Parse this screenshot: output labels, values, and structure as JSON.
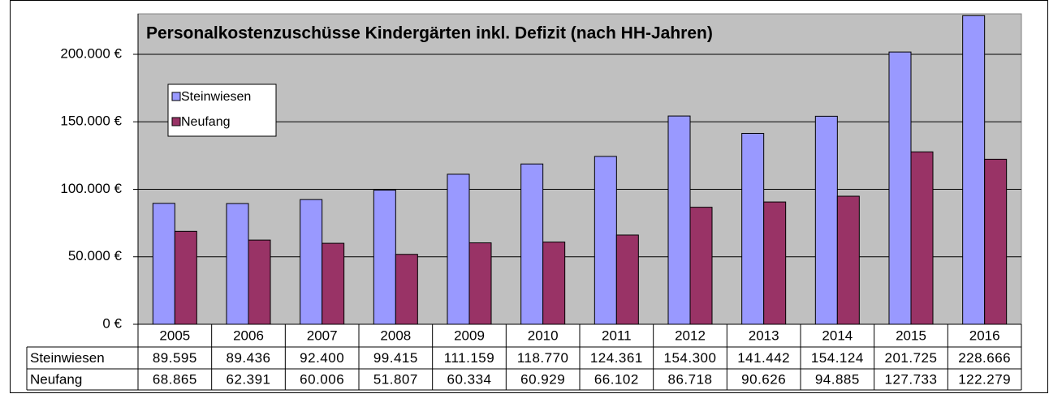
{
  "chart_data": {
    "type": "bar",
    "title": "Personalkostenzuschüsse Kindergärten inkl. Defizit (nach HH-Jahren)",
    "categories": [
      "2005",
      "2006",
      "2007",
      "2008",
      "2009",
      "2010",
      "2011",
      "2012",
      "2013",
      "2014",
      "2015",
      "2016"
    ],
    "series": [
      {
        "name": "Steinwiesen",
        "color": "#9999ff",
        "values": [
          89595,
          89436,
          92400,
          99415,
          111159,
          118770,
          124361,
          154300,
          141442,
          154124,
          201725,
          228666
        ],
        "value_labels": [
          "89.595",
          "89.436",
          "92.400",
          "99.415",
          "111.159",
          "118.770",
          "124.361",
          "154.300",
          "141.442",
          "154.124",
          "201.725",
          "228.666"
        ]
      },
      {
        "name": "Neufang",
        "color": "#993366",
        "values": [
          68865,
          62391,
          60006,
          51807,
          60334,
          60929,
          66102,
          86718,
          90626,
          94885,
          127733,
          122279
        ],
        "value_labels": [
          "68.865",
          "62.391",
          "60.006",
          "51.807",
          "60.334",
          "60.929",
          "66.102",
          "86.718",
          "90.626",
          "94.885",
          "127.733",
          "122.279"
        ]
      }
    ],
    "ylim": [
      0,
      230000
    ],
    "yticks": [
      {
        "value": 0,
        "label": "0 €"
      },
      {
        "value": 50000,
        "label": "50.000 €"
      },
      {
        "value": 100000,
        "label": "100.000 €"
      },
      {
        "value": 150000,
        "label": "150.000 €"
      },
      {
        "value": 200000,
        "label": "200.000 €"
      }
    ],
    "grid": true,
    "legend": "upper left",
    "plot_background": "#c0c0c0"
  }
}
